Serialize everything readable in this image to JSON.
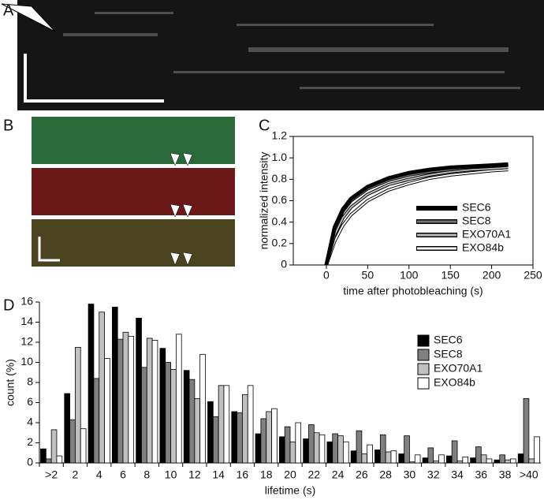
{
  "panel_labels": [
    "A",
    "B",
    "C",
    "D"
  ],
  "chart_data": [
    {
      "type": "line",
      "xlabel": "time after photobleaching (s)",
      "ylabel": "normalized intensity",
      "x": [
        0,
        10,
        20,
        30,
        50,
        75,
        100,
        125,
        150,
        175,
        200,
        220
      ],
      "xlim": [
        -40,
        250
      ],
      "xticks": [
        0,
        50,
        100,
        150,
        200,
        250
      ],
      "ylim": [
        0,
        1.2
      ],
      "yticks": [
        0,
        0.2,
        0.4,
        0.6,
        0.8,
        {
          "value": 1,
          "label": "1.0"
        },
        1.2
      ],
      "legend": "lower right",
      "series": [
        {
          "name": "SEC6",
          "color": "#000000",
          "values": [
            0,
            0.35,
            0.52,
            0.62,
            0.73,
            0.81,
            0.86,
            0.89,
            0.91,
            0.92,
            0.93,
            0.94
          ]
        },
        {
          "name": "SEC8",
          "color": "#777777",
          "values": [
            0,
            0.33,
            0.5,
            0.6,
            0.71,
            0.79,
            0.84,
            0.87,
            0.89,
            0.91,
            0.92,
            0.93
          ]
        },
        {
          "name": "EXO70A1",
          "color": "#bbbbbb",
          "values": [
            0,
            0.28,
            0.44,
            0.54,
            0.66,
            0.75,
            0.8,
            0.84,
            0.87,
            0.89,
            0.9,
            0.91
          ]
        },
        {
          "name": "EXO84b",
          "color": "#ffffff",
          "values": [
            0,
            0.22,
            0.37,
            0.47,
            0.6,
            0.7,
            0.76,
            0.81,
            0.84,
            0.86,
            0.88,
            0.89
          ]
        }
      ]
    },
    {
      "type": "bar",
      "xlabel": "lifetime (s)",
      "ylabel": "count (%)",
      "categories": [
        ">2",
        "2",
        "4",
        "6",
        "8",
        "10",
        "12",
        "14",
        "16",
        "18",
        "20",
        "22",
        "24",
        "26",
        "28",
        "30",
        "32",
        "34",
        "36",
        "38",
        ">40"
      ],
      "ylim": [
        0,
        16
      ],
      "yticks": [
        0,
        2,
        4,
        6,
        8,
        10,
        12,
        14,
        16
      ],
      "legend": "upper right",
      "series": [
        {
          "name": "SEC6",
          "color": "#000000",
          "values": [
            1.4,
            6.9,
            15.8,
            15.5,
            14.4,
            11.4,
            9.2,
            6.1,
            5.1,
            2.9,
            2.6,
            2.4,
            2.1,
            1.2,
            1.3,
            0.9,
            0.5,
            0.7,
            0.5,
            0.3,
            0.9
          ]
        },
        {
          "name": "SEC8",
          "color": "#808080",
          "values": [
            0.4,
            4.3,
            8.4,
            12.3,
            9.5,
            10.0,
            8.3,
            4.6,
            5.0,
            4.4,
            3.6,
            3.8,
            2.9,
            3.2,
            2.8,
            2.7,
            1.5,
            2.2,
            1.6,
            0.8,
            6.4
          ]
        },
        {
          "name": "EXO70A1",
          "color": "#c0c0c0",
          "values": [
            3.3,
            11.5,
            15.0,
            13.0,
            12.4,
            9.3,
            6.4,
            7.7,
            6.8,
            5.1,
            2.1,
            3.0,
            2.7,
            0.9,
            1.1,
            0.1,
            0.2,
            0.2,
            0.8,
            0.3,
            0.4
          ]
        },
        {
          "name": "EXO84b",
          "color": "#ffffff",
          "values": [
            0.7,
            3.4,
            10.4,
            12.6,
            12.2,
            12.8,
            10.8,
            7.7,
            7.7,
            5.4,
            4.0,
            2.8,
            2.1,
            1.8,
            1.2,
            0.8,
            0.8,
            0.6,
            0.4,
            0.4,
            2.6
          ]
        }
      ]
    }
  ]
}
